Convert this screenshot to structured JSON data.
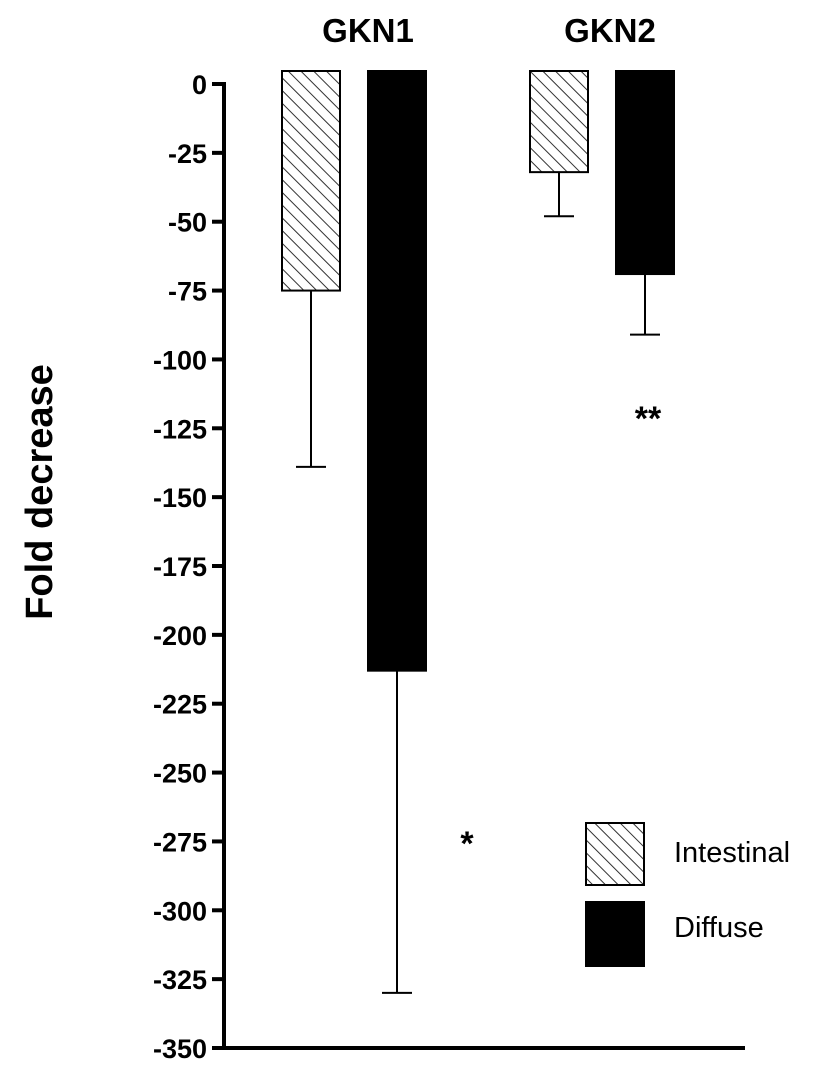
{
  "chart_data": {
    "type": "bar",
    "ylabel": "Fold decrease",
    "ylim": [
      -350,
      0
    ],
    "yticks": [
      0,
      -25,
      -50,
      -75,
      -100,
      -125,
      -150,
      -175,
      -200,
      -225,
      -250,
      -275,
      -300,
      -325,
      -350
    ],
    "categories": [
      "GKN1",
      "GKN2"
    ],
    "series": [
      {
        "name": "Intestinal",
        "values": [
          -75,
          -32
        ],
        "error": [
          64,
          16
        ],
        "fill": "hatched"
      },
      {
        "name": "Diffuse",
        "values": [
          -213,
          -69
        ],
        "error": [
          117,
          22
        ],
        "fill": "#000000"
      }
    ],
    "annotations": [
      {
        "text": "*",
        "category": "GKN1",
        "y": -275
      },
      {
        "text": "**",
        "category": "GKN2",
        "y": -120
      }
    ],
    "legend_position": "bottom-right",
    "grid": false
  }
}
